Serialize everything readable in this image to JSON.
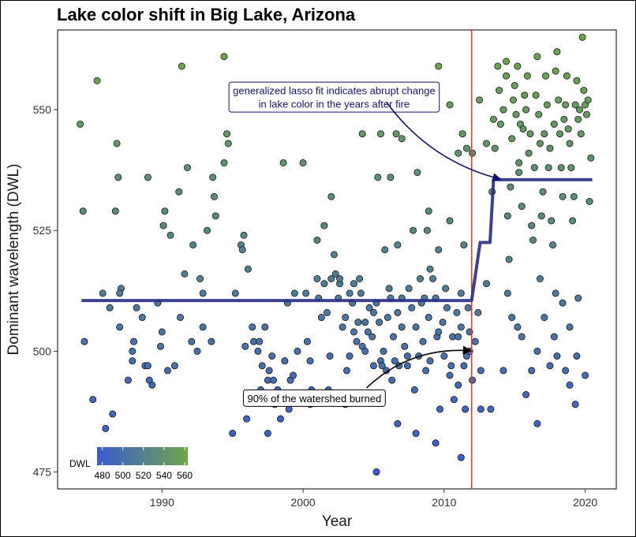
{
  "chart_data": {
    "type": "scatter",
    "title": "Lake color shift in Big Lake, Arizona",
    "xlabel": "Year",
    "ylabel": "Dominant wavelength (DWL)",
    "xlim": [
      1982.6,
      2022.2
    ],
    "ylim": [
      471.5,
      566.5
    ],
    "x_ticks": [
      1990,
      2000,
      2010,
      2020
    ],
    "y_ticks": [
      475,
      500,
      525,
      550
    ],
    "grid": false,
    "colors": {
      "fire_line": "#e8342b",
      "fit_line": "#2d3187",
      "color_low": "#3a5bd1",
      "color_high": "#6ea64a",
      "arrow_blue": "#13136e",
      "arrow_black": "#000000"
    },
    "legend": {
      "title": "DWL",
      "placement": "bottom-left",
      "range": [
        475,
        563
      ],
      "labels": [
        "480",
        "500",
        "520",
        "540",
        "560"
      ],
      "values": [
        480,
        500,
        520,
        540,
        560
      ]
    },
    "fire_year": 2011.95,
    "fit": [
      [
        1984.3,
        510.5
      ],
      [
        2011.95,
        510.5
      ],
      [
        2012.55,
        522.5
      ],
      [
        2013.25,
        522.5
      ],
      [
        2013.5,
        535.5
      ],
      [
        2020.5,
        535.5
      ]
    ],
    "annotations": [
      {
        "id": "lasso-note",
        "lines": [
          "generalized lasso fit indicates abrupt change",
          "in lake color in the years after fire"
        ],
        "text_color": "#13136e",
        "anchor": [
          2002.2,
          552.6
        ],
        "arrow_from": [
          2005.9,
          551.6
        ],
        "arrow_to": [
          2014.0,
          535.6
        ]
      },
      {
        "id": "burn-note",
        "lines": [
          "90% of the watershed burned"
        ],
        "text_color": "#000000",
        "anchor": [
          2000.8,
          490.3
        ],
        "arrow_from": [
          2004.5,
          492.4
        ],
        "arrow_to": [
          2011.9,
          500.1
        ]
      }
    ],
    "points": [
      [
        1984.2,
        547
      ],
      [
        1984.4,
        529
      ],
      [
        1984.5,
        502
      ],
      [
        1985.1,
        490
      ],
      [
        1985.4,
        556
      ],
      [
        1985.8,
        512
      ],
      [
        1986.0,
        484
      ],
      [
        1986.3,
        509
      ],
      [
        1986.5,
        487
      ],
      [
        1986.7,
        529
      ],
      [
        1986.8,
        543
      ],
      [
        1986.9,
        536
      ],
      [
        1987.0,
        505
      ],
      [
        1987.1,
        513
      ],
      [
        1987.0,
        512
      ],
      [
        1987.6,
        494
      ],
      [
        1987.9,
        500
      ],
      [
        1988.0,
        502
      ],
      [
        1987.9,
        498
      ],
      [
        1988.2,
        509
      ],
      [
        1988.6,
        507
      ],
      [
        1988.8,
        497
      ],
      [
        1989.0,
        536
      ],
      [
        1989.1,
        494
      ],
      [
        1989.0,
        497
      ],
      [
        1989.3,
        493
      ],
      [
        1989.7,
        510
      ],
      [
        1989.9,
        501
      ],
      [
        1990.0,
        504
      ],
      [
        1990.1,
        526
      ],
      [
        1990.2,
        529
      ],
      [
        1990.4,
        496
      ],
      [
        1990.6,
        524
      ],
      [
        1990.9,
        497
      ],
      [
        1991.2,
        533
      ],
      [
        1991.3,
        507
      ],
      [
        1991.4,
        559
      ],
      [
        1991.6,
        516
      ],
      [
        1991.8,
        538
      ],
      [
        1992.1,
        502
      ],
      [
        1992.2,
        522
      ],
      [
        1992.5,
        500
      ],
      [
        1992.7,
        515
      ],
      [
        1992.9,
        512
      ],
      [
        1992.9,
        505
      ],
      [
        1993.2,
        525
      ],
      [
        1993.5,
        502
      ],
      [
        1993.6,
        536
      ],
      [
        1993.7,
        532
      ],
      [
        1993.8,
        528
      ],
      [
        1994.4,
        561
      ],
      [
        1994.4,
        539
      ],
      [
        1994.6,
        545
      ],
      [
        1994.7,
        543
      ],
      [
        1995.0,
        483
      ],
      [
        1995.2,
        512
      ],
      [
        1995.6,
        522
      ],
      [
        1995.7,
        521
      ],
      [
        1995.8,
        524
      ],
      [
        1995.9,
        501
      ],
      [
        1996.1,
        517
      ],
      [
        1996.4,
        505
      ],
      [
        1996.5,
        502
      ],
      [
        1996.8,
        500
      ],
      [
        1996.9,
        502
      ],
      [
        1997.0,
        492
      ],
      [
        1997.1,
        497
      ],
      [
        1997.3,
        505
      ],
      [
        1997.5,
        494
      ],
      [
        1997.6,
        496
      ],
      [
        1997.8,
        499
      ],
      [
        1997.9,
        494
      ],
      [
        1998.0,
        489
      ],
      [
        1998.2,
        492
      ],
      [
        1998.4,
        486
      ],
      [
        1998.6,
        539
      ],
      [
        1998.7,
        498
      ],
      [
        1998.9,
        510
      ],
      [
        1999.1,
        494
      ],
      [
        1999.3,
        495
      ],
      [
        1999.4,
        512
      ],
      [
        1999.6,
        500
      ],
      [
        1999.8,
        491
      ],
      [
        2000.0,
        539
      ],
      [
        2000.2,
        512
      ],
      [
        2000.3,
        502
      ],
      [
        2000.5,
        498
      ],
      [
        2000.6,
        492
      ],
      [
        2000.8,
        491
      ],
      [
        2001.0,
        523
      ],
      [
        2001.1,
        511
      ],
      [
        2001.3,
        507
      ],
      [
        2001.5,
        514
      ],
      [
        2001.7,
        508
      ],
      [
        2001.9,
        499
      ],
      [
        2002.0,
        532
      ],
      [
        2002.2,
        520
      ],
      [
        2002.3,
        516
      ],
      [
        2002.5,
        511
      ],
      [
        2002.6,
        514
      ],
      [
        2002.8,
        505
      ],
      [
        2003.0,
        507
      ],
      [
        2003.1,
        496
      ],
      [
        2003.3,
        499
      ],
      [
        2003.5,
        510
      ],
      [
        2003.6,
        514
      ],
      [
        2003.8,
        502
      ],
      [
        2003.9,
        506
      ],
      [
        2004.1,
        512
      ],
      [
        2004.2,
        501
      ],
      [
        2004.4,
        500
      ],
      [
        2004.6,
        504
      ],
      [
        2004.7,
        509
      ],
      [
        2004.9,
        503
      ],
      [
        2005.0,
        497
      ],
      [
        2005.2,
        510
      ],
      [
        2005.4,
        506
      ],
      [
        2005.5,
        498
      ],
      [
        2005.7,
        500
      ],
      [
        2005.9,
        496
      ],
      [
        2006.0,
        507
      ],
      [
        2006.2,
        511
      ],
      [
        2006.3,
        494
      ],
      [
        2006.5,
        498
      ],
      [
        2006.7,
        508
      ],
      [
        2006.8,
        497
      ],
      [
        2007.0,
        505
      ],
      [
        2007.2,
        501
      ],
      [
        2007.4,
        497
      ],
      [
        2007.5,
        513
      ],
      [
        2007.7,
        509
      ],
      [
        2007.9,
        492
      ],
      [
        2008.0,
        505
      ],
      [
        2008.2,
        499
      ],
      [
        2008.4,
        510
      ],
      [
        2008.5,
        502
      ],
      [
        2008.7,
        496
      ],
      [
        2008.9,
        507
      ],
      [
        2009.0,
        498
      ],
      [
        2009.2,
        515
      ],
      [
        2009.4,
        511
      ],
      [
        2009.5,
        503
      ],
      [
        2009.7,
        488
      ],
      [
        2009.9,
        506
      ],
      [
        2010.0,
        499
      ],
      [
        2010.2,
        509
      ],
      [
        2010.4,
        495
      ],
      [
        2010.6,
        503
      ],
      [
        2010.7,
        490
      ],
      [
        2010.9,
        508
      ],
      [
        2011.0,
        493
      ],
      [
        2011.2,
        505
      ],
      [
        2011.4,
        497
      ],
      [
        2011.5,
        488
      ],
      [
        2011.7,
        509
      ],
      [
        2011.8,
        504
      ],
      [
        2012.0,
        494
      ],
      [
        2012.2,
        502
      ],
      [
        2012.4,
        508
      ],
      [
        2012.6,
        496
      ],
      [
        2011.2,
        478
      ],
      [
        2009.4,
        481
      ],
      [
        2008.0,
        483
      ],
      [
        2006.7,
        485
      ],
      [
        2005.2,
        475
      ],
      [
        2004.0,
        490
      ],
      [
        2003.0,
        489
      ],
      [
        2001.8,
        492
      ],
      [
        1996.0,
        486
      ],
      [
        1997.5,
        483
      ],
      [
        1999.0,
        488
      ],
      [
        2000.5,
        489
      ],
      [
        2001.5,
        526
      ],
      [
        2002.6,
        515
      ],
      [
        2003.6,
        504
      ],
      [
        2004.4,
        506
      ],
      [
        2005.6,
        497
      ],
      [
        2006.4,
        503
      ],
      [
        2007.4,
        499
      ],
      [
        2008.6,
        511
      ],
      [
        2009.6,
        504
      ],
      [
        2010.5,
        497
      ],
      [
        2011.0,
        503
      ],
      [
        2011.6,
        499
      ],
      [
        2012.6,
        488
      ],
      [
        2001.0,
        515
      ],
      [
        2002.0,
        515
      ],
      [
        2003.3,
        512
      ],
      [
        2004.0,
        515
      ],
      [
        2005.0,
        508
      ],
      [
        2006.1,
        513
      ],
      [
        2007.0,
        511
      ],
      [
        2008.3,
        515
      ],
      [
        2009.0,
        517
      ],
      [
        2010.1,
        513
      ],
      [
        2011.2,
        512
      ],
      [
        2011.8,
        500
      ],
      [
        2006.6,
        545
      ],
      [
        2005.5,
        545
      ],
      [
        2004.2,
        545
      ],
      [
        2005.3,
        536
      ],
      [
        2006.2,
        536
      ],
      [
        2007.0,
        544
      ],
      [
        2008.1,
        537
      ],
      [
        2008.9,
        529
      ],
      [
        2009.6,
        559
      ],
      [
        2010.4,
        551
      ],
      [
        2011.0,
        541
      ],
      [
        2011.3,
        545
      ],
      [
        2005.8,
        521
      ],
      [
        2006.7,
        522
      ],
      [
        2007.8,
        525
      ],
      [
        2008.8,
        525
      ],
      [
        2009.6,
        521
      ],
      [
        2010.4,
        527
      ],
      [
        2011.4,
        522
      ],
      [
        2011.6,
        542
      ],
      [
        2012.0,
        541
      ],
      [
        2012.5,
        552
      ],
      [
        2013.0,
        543
      ],
      [
        2013.4,
        533
      ],
      [
        2013.5,
        548
      ],
      [
        2013.6,
        542
      ],
      [
        2013.8,
        559
      ],
      [
        2013.9,
        554
      ],
      [
        2014.0,
        547
      ],
      [
        2014.2,
        550
      ],
      [
        2014.4,
        557
      ],
      [
        2014.4,
        560
      ],
      [
        2014.5,
        528
      ],
      [
        2014.6,
        519
      ],
      [
        2014.7,
        534
      ],
      [
        2014.8,
        544
      ],
      [
        2014.9,
        552
      ],
      [
        2015.0,
        555
      ],
      [
        2015.1,
        549
      ],
      [
        2015.2,
        559
      ],
      [
        2015.3,
        539
      ],
      [
        2015.3,
        537
      ],
      [
        2015.4,
        547
      ],
      [
        2015.5,
        530
      ],
      [
        2015.6,
        546
      ],
      [
        2015.7,
        553
      ],
      [
        2015.8,
        550
      ],
      [
        2015.9,
        557
      ],
      [
        2016.0,
        541
      ],
      [
        2016.1,
        545
      ],
      [
        2016.2,
        526
      ],
      [
        2016.3,
        523
      ],
      [
        2016.4,
        538
      ],
      [
        2016.5,
        553
      ],
      [
        2016.6,
        561
      ],
      [
        2016.7,
        549
      ],
      [
        2016.8,
        543
      ],
      [
        2016.9,
        528
      ],
      [
        2017.0,
        533
      ],
      [
        2017.1,
        545
      ],
      [
        2017.2,
        557
      ],
      [
        2017.3,
        551
      ],
      [
        2017.4,
        538
      ],
      [
        2017.5,
        542
      ],
      [
        2017.6,
        527
      ],
      [
        2017.7,
        522
      ],
      [
        2017.8,
        547
      ],
      [
        2017.9,
        558
      ],
      [
        2018.0,
        562
      ],
      [
        2018.1,
        552
      ],
      [
        2018.2,
        545
      ],
      [
        2018.3,
        538
      ],
      [
        2018.4,
        532
      ],
      [
        2018.5,
        548
      ],
      [
        2018.6,
        551
      ],
      [
        2018.7,
        557
      ],
      [
        2018.8,
        546
      ],
      [
        2018.9,
        543
      ],
      [
        2019.0,
        538
      ],
      [
        2019.1,
        527
      ],
      [
        2019.2,
        532
      ],
      [
        2019.3,
        551
      ],
      [
        2019.4,
        556
      ],
      [
        2019.5,
        548
      ],
      [
        2019.6,
        550
      ],
      [
        2019.7,
        545
      ],
      [
        2019.8,
        565
      ],
      [
        2019.9,
        554
      ],
      [
        2020.0,
        551
      ],
      [
        2020.1,
        549
      ],
      [
        2020.2,
        552
      ],
      [
        2020.3,
        531
      ],
      [
        2020.4,
        540
      ],
      [
        2014.5,
        512
      ],
      [
        2014.8,
        507
      ],
      [
        2015.5,
        503
      ],
      [
        2016.2,
        496
      ],
      [
        2016.6,
        500
      ],
      [
        2017.1,
        507
      ],
      [
        2017.9,
        512
      ],
      [
        2018.4,
        510
      ],
      [
        2018.9,
        505
      ],
      [
        2019.5,
        511
      ],
      [
        2020.0,
        495
      ],
      [
        2015.8,
        491
      ],
      [
        2016.6,
        485
      ],
      [
        2017.5,
        497
      ],
      [
        2018.0,
        499
      ],
      [
        2018.6,
        496
      ],
      [
        2019.3,
        489
      ],
      [
        2015.2,
        505
      ],
      [
        2016.8,
        515
      ],
      [
        2017.8,
        503
      ],
      [
        2018.9,
        493
      ],
      [
        2019.4,
        499
      ],
      [
        2013.3,
        488
      ],
      [
        2014.2,
        496
      ],
      [
        2013.0,
        514
      ]
    ]
  }
}
